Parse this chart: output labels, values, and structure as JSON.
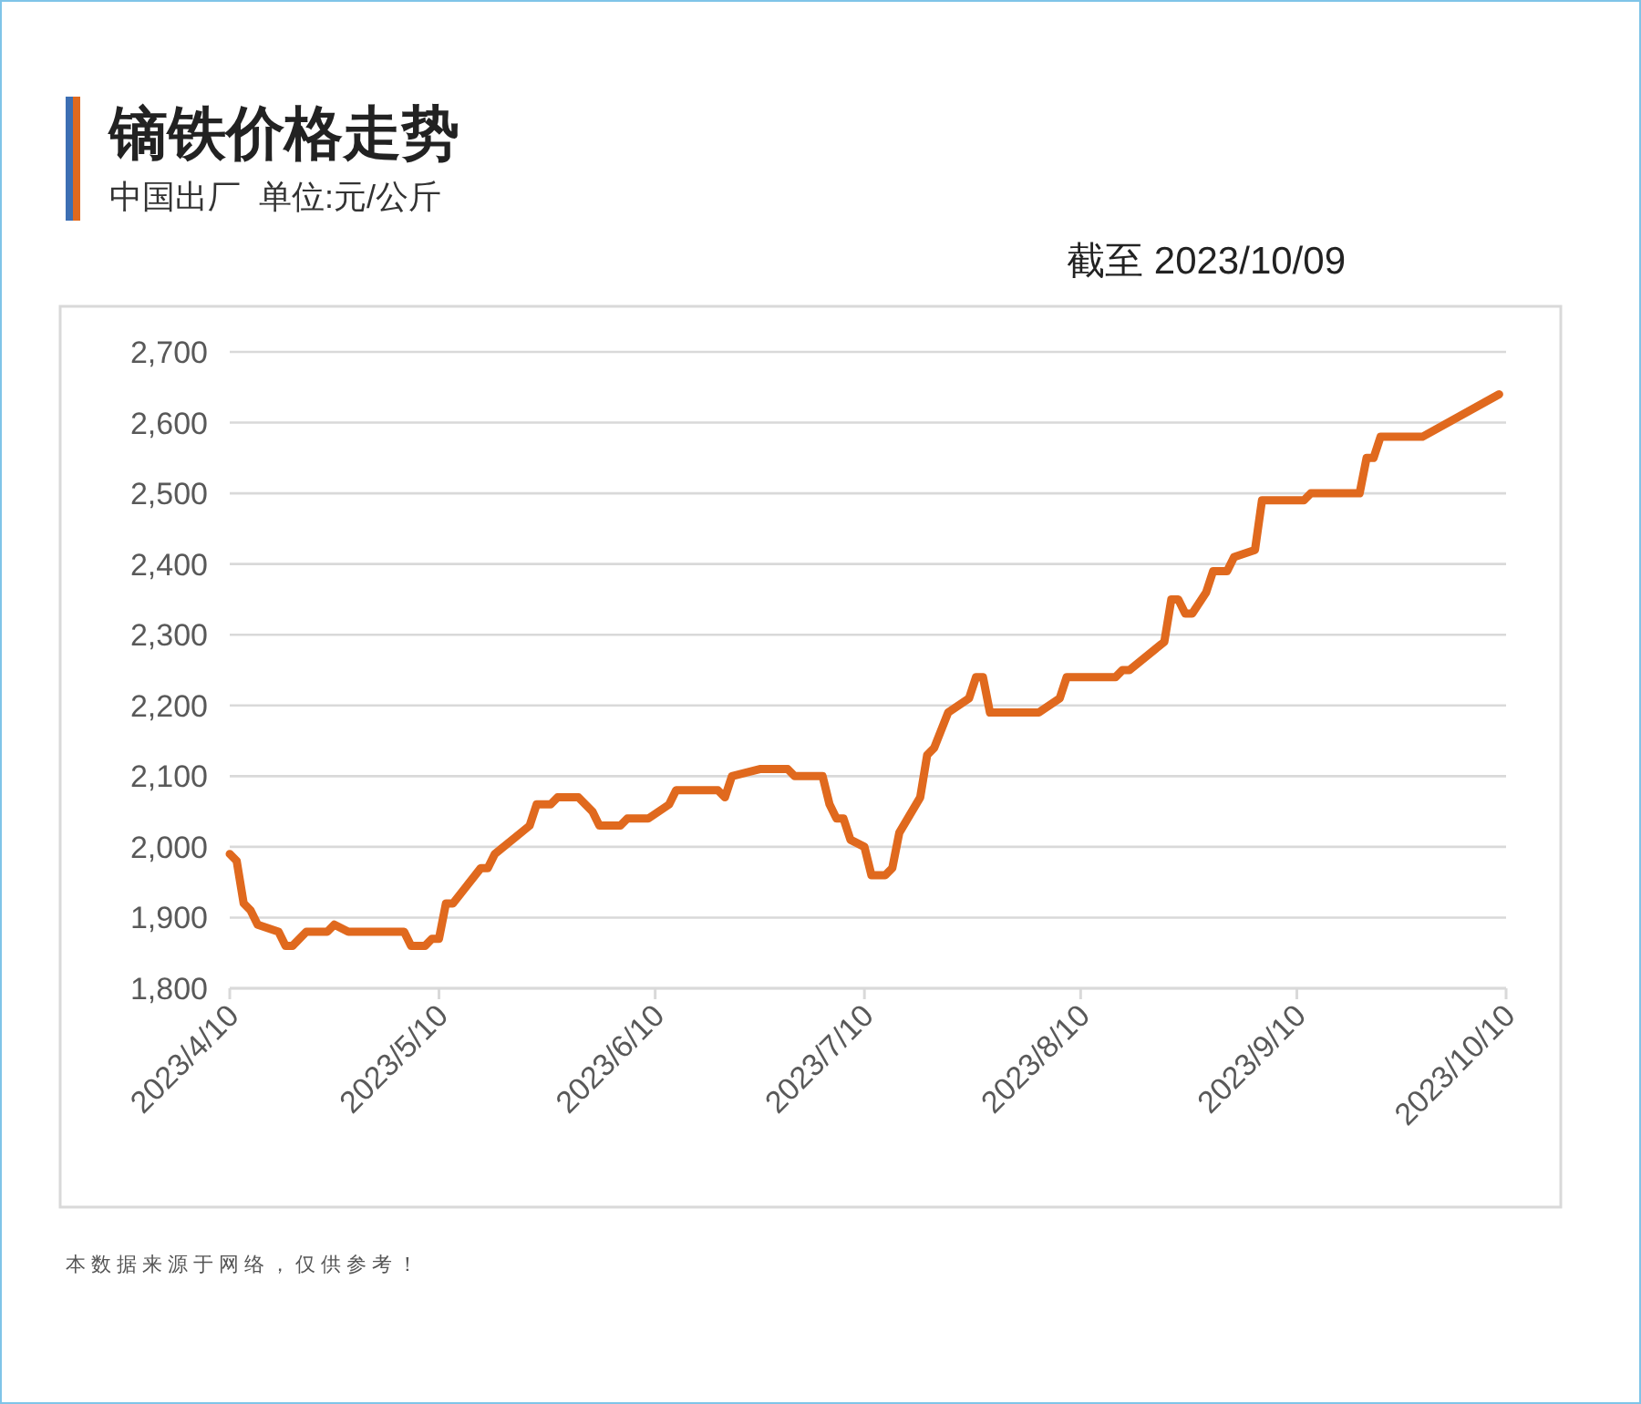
{
  "chart_data": {
    "type": "line",
    "title": "镝铁价格走势",
    "subtitle": "中国出厂  单位:元/公斤",
    "annotations": [
      "截至 2023/10/09",
      "本数据来源于网络，仅供参考！"
    ],
    "x": [
      "2023-04-10",
      "2023-04-11",
      "2023-04-12",
      "2023-04-13",
      "2023-04-14",
      "2023-04-17",
      "2023-04-18",
      "2023-04-19",
      "2023-04-21",
      "2023-04-24",
      "2023-04-25",
      "2023-04-27",
      "2023-05-05",
      "2023-05-06",
      "2023-05-08",
      "2023-05-09",
      "2023-05-10",
      "2023-05-11",
      "2023-05-12",
      "2023-05-16",
      "2023-05-17",
      "2023-05-18",
      "2023-05-23",
      "2023-05-24",
      "2023-05-26",
      "2023-05-27",
      "2023-05-30",
      "2023-06-01",
      "2023-06-02",
      "2023-06-05",
      "2023-06-06",
      "2023-06-09",
      "2023-06-12",
      "2023-06-13",
      "2023-06-19",
      "2023-06-20",
      "2023-06-21",
      "2023-06-25",
      "2023-06-29",
      "2023-06-30",
      "2023-07-04",
      "2023-07-05",
      "2023-07-06",
      "2023-07-07",
      "2023-07-08",
      "2023-07-10",
      "2023-07-11",
      "2023-07-13",
      "2023-07-14",
      "2023-07-15",
      "2023-07-18",
      "2023-07-19",
      "2023-07-20",
      "2023-07-22",
      "2023-07-25",
      "2023-07-26",
      "2023-07-27",
      "2023-07-28",
      "2023-08-04",
      "2023-08-07",
      "2023-08-08",
      "2023-08-15",
      "2023-08-16",
      "2023-08-17",
      "2023-08-22",
      "2023-08-23",
      "2023-08-24",
      "2023-08-25",
      "2023-08-26",
      "2023-08-28",
      "2023-08-29",
      "2023-08-31",
      "2023-09-01",
      "2023-09-04",
      "2023-09-05",
      "2023-09-11",
      "2023-09-12",
      "2023-09-19",
      "2023-09-20",
      "2023-09-21",
      "2023-09-22",
      "2023-09-28",
      "2023-10-09"
    ],
    "series": [
      {
        "color": "#e0691e",
        "values": [
          1990,
          1980,
          1920,
          1910,
          1890,
          1880,
          1860,
          1860,
          1880,
          1880,
          1890,
          1880,
          1880,
          1860,
          1860,
          1870,
          1870,
          1920,
          1920,
          1970,
          1970,
          1990,
          2030,
          2060,
          2060,
          2070,
          2070,
          2050,
          2030,
          2030,
          2040,
          2040,
          2060,
          2080,
          2080,
          2070,
          2100,
          2110,
          2110,
          2100,
          2100,
          2060,
          2040,
          2040,
          2010,
          2000,
          1960,
          1960,
          1970,
          2020,
          2070,
          2130,
          2140,
          2190,
          2210,
          2240,
          2240,
          2190,
          2190,
          2210,
          2240,
          2240,
          2250,
          2250,
          2290,
          2350,
          2350,
          2330,
          2330,
          2360,
          2390,
          2390,
          2410,
          2420,
          2490,
          2490,
          2500,
          2500,
          2550,
          2550,
          2580,
          2580,
          2640
        ]
      }
    ],
    "xlim": [
      "2023-04-10",
      "2023-10-10"
    ],
    "xticks": [
      {
        "value": "2023-04-10",
        "label": "2023/4/10"
      },
      {
        "value": "2023-05-10",
        "label": "2023/5/10"
      },
      {
        "value": "2023-06-10",
        "label": "2023/6/10"
      },
      {
        "value": "2023-07-10",
        "label": "2023/7/10"
      },
      {
        "value": "2023-08-10",
        "label": "2023/8/10"
      },
      {
        "value": "2023-09-10",
        "label": "2023/9/10"
      },
      {
        "value": "2023-10-10",
        "label": "2023/10/10"
      }
    ],
    "ylim": [
      1800,
      2700
    ],
    "yticks": [
      {
        "value": 1800,
        "label": "1,800"
      },
      {
        "value": 1900,
        "label": "1,900"
      },
      {
        "value": 2000,
        "label": "2,000"
      },
      {
        "value": 2100,
        "label": "2,100"
      },
      {
        "value": 2200,
        "label": "2,200"
      },
      {
        "value": 2300,
        "label": "2,300"
      },
      {
        "value": 2400,
        "label": "2,400"
      },
      {
        "value": 2500,
        "label": "2,500"
      },
      {
        "value": 2600,
        "label": "2,600"
      },
      {
        "value": 2700,
        "label": "2,700"
      }
    ],
    "grid": "y",
    "marker": "none",
    "line_style": "solid"
  }
}
